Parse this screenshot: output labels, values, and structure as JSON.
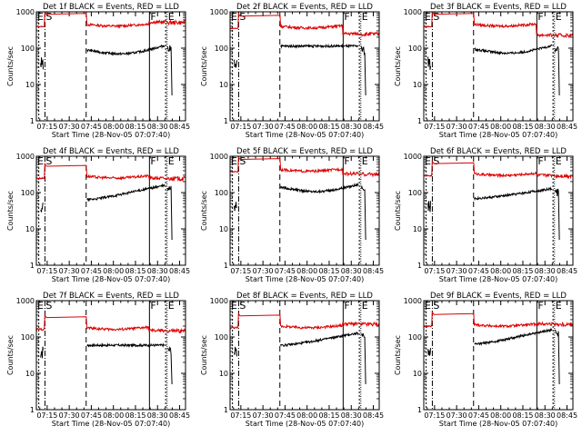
{
  "colors": {
    "events": "#000000",
    "lld": "#dd0000",
    "background": "#ffffff"
  },
  "common": {
    "xlabel": "Start Time (28-Nov-05 07:07:40)",
    "ylabel": "Counts/sec",
    "xticks": [
      "07:15",
      "07:30",
      "07:45",
      "08:00",
      "08:15",
      "08:30",
      "08:45"
    ],
    "xtick_minutes": [
      15,
      30,
      45,
      60,
      75,
      90,
      105
    ],
    "xlim_minutes": [
      7.67,
      109
    ],
    "ylim": [
      1,
      1000
    ],
    "yscale": "log",
    "yticks": [
      "1",
      "10",
      "100",
      "1000"
    ]
  },
  "chart_data": [
    {
      "type": "line",
      "title": "Det 1f BLACK = Events, RED = LLD",
      "markers": [
        "E",
        "S",
        "F",
        "E"
      ],
      "lld_level": 450,
      "ev_level": 90,
      "ev_end": 120,
      "lld_end": 520,
      "ev_shape": "dip-rise"
    },
    {
      "type": "line",
      "title": "Det 2f BLACK = Events, RED = LLD",
      "markers": [
        "E",
        "S",
        "F",
        "E"
      ],
      "lld_level": 400,
      "ev_level": 115,
      "ev_end": 115,
      "lld_end": 250,
      "ev_shape": "flat"
    },
    {
      "type": "line",
      "title": "Det 3f BLACK = Events, RED = LLD",
      "markers": [
        "E",
        "S",
        "F",
        "E"
      ],
      "lld_level": 450,
      "ev_level": 95,
      "ev_end": 120,
      "lld_end": 230,
      "ev_shape": "dip-rise"
    },
    {
      "type": "line",
      "title": "Det 4f BLACK = Events, RED = LLD",
      "markers": [
        "E",
        "S",
        "F",
        "E"
      ],
      "lld_level": 280,
      "ev_level": 65,
      "ev_end": 160,
      "lld_end": 250,
      "ev_shape": "rise"
    },
    {
      "type": "line",
      "title": "Det 5f BLACK = Events, RED = LLD",
      "markers": [
        "E",
        "S",
        "F",
        "E"
      ],
      "lld_level": 430,
      "ev_level": 140,
      "ev_end": 170,
      "lld_end": 330,
      "ev_shape": "dip-rise"
    },
    {
      "type": "line",
      "title": "Det 6f BLACK = Events, RED = LLD",
      "markers": [
        "E",
        "S",
        "F",
        "E"
      ],
      "lld_level": 330,
      "ev_level": 70,
      "ev_end": 130,
      "lld_end": 300,
      "ev_shape": "rise"
    },
    {
      "type": "line",
      "title": "Det 7f BLACK = Events, RED = LLD",
      "markers": [
        "E",
        "S",
        "F",
        "E"
      ],
      "lld_level": 180,
      "ev_level": 60,
      "ev_end": 55,
      "lld_end": 150,
      "ev_shape": "flat"
    },
    {
      "type": "line",
      "title": "Det 8f BLACK = Events, RED = LLD",
      "markers": [
        "E",
        "S",
        "F",
        "E"
      ],
      "lld_level": 200,
      "ev_level": 60,
      "ev_end": 130,
      "lld_end": 230,
      "ev_shape": "rise"
    },
    {
      "type": "line",
      "title": "Det 9f BLACK = Events, RED = LLD",
      "markers": [
        "E",
        "S",
        "F",
        "E"
      ],
      "lld_level": 220,
      "ev_level": 65,
      "ev_end": 160,
      "lld_end": 230,
      "ev_shape": "rise"
    }
  ]
}
